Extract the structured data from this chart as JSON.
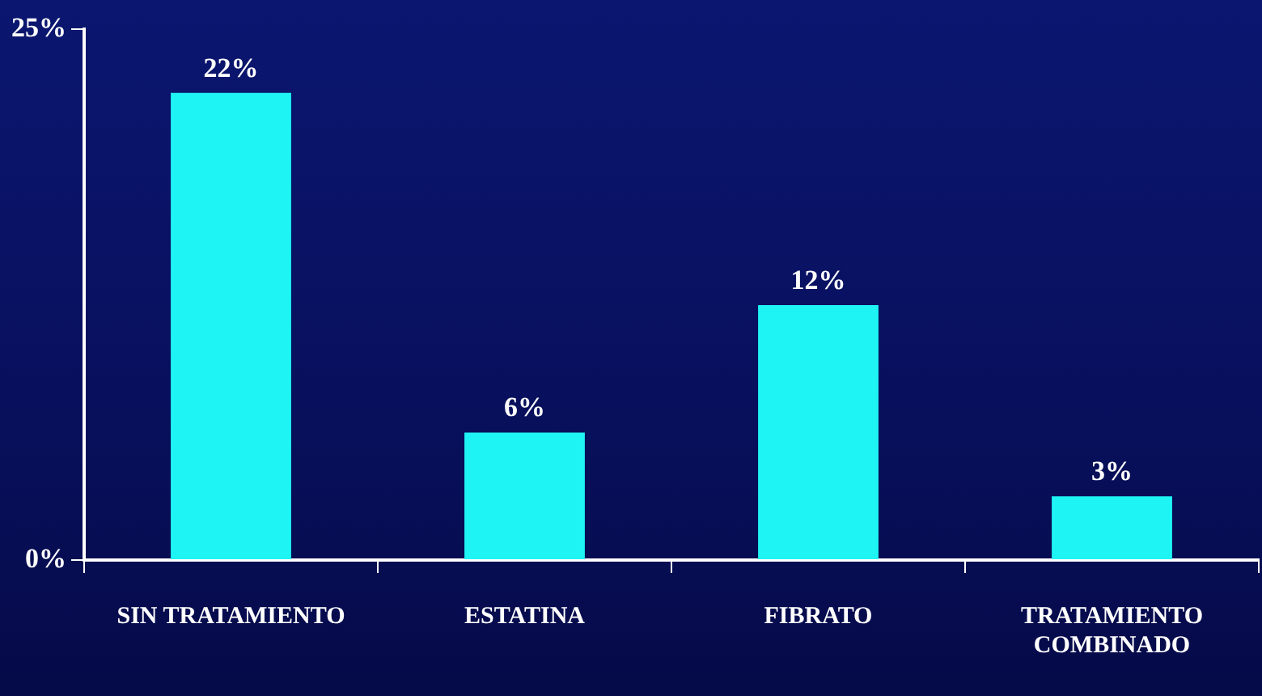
{
  "chart_data": {
    "type": "bar",
    "categories": [
      "SIN TRATAMIENTO",
      "ESTATINA",
      "FIBRATO",
      "TRATAMIENTO COMBINADO"
    ],
    "values": [
      22,
      6,
      12,
      3
    ],
    "value_labels": [
      "22%",
      "6%",
      "12%",
      "3%"
    ],
    "color": "#1ef4f4",
    "ylim": [
      0,
      25
    ],
    "yticks": [
      {
        "value": 0,
        "label": "0%"
      },
      {
        "value": 25,
        "label": "25%"
      }
    ],
    "grid": false,
    "legend": false
  }
}
